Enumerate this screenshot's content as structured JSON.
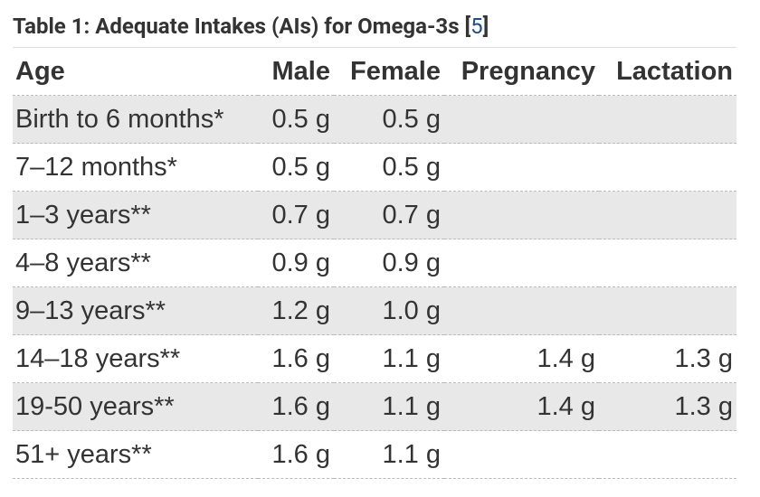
{
  "caption": {
    "parts": [
      "Table 1: Adequate Intakes (AIs) for Omega-3s [",
      "5",
      "]"
    ]
  },
  "table": {
    "header": [
      "Age",
      "Male",
      "Female",
      "Pregnancy",
      "Lactation"
    ],
    "rows": [
      [
        "Birth to 6 months*",
        "0.5 g",
        "0.5 g",
        null,
        null
      ],
      [
        "7–12 months*",
        "0.5 g",
        "0.5 g",
        null,
        null
      ],
      [
        "1–3 years**",
        "0.7 g",
        "0.7 g",
        null,
        null
      ],
      [
        "4–8 years**",
        "0.9 g",
        "0.9 g",
        null,
        null
      ],
      [
        "9–13 years**",
        "1.2 g",
        "1.0 g",
        null,
        null
      ],
      [
        "14–18 years**",
        "1.6 g",
        "1.1 g",
        "1.4 g",
        "1.3 g"
      ],
      [
        "19-50 years**",
        "1.6 g",
        "1.1 g",
        "1.4 g",
        "1.3 g"
      ],
      [
        "51+ years**",
        "1.6 g",
        "1.1 g",
        null,
        null
      ]
    ]
  }
}
